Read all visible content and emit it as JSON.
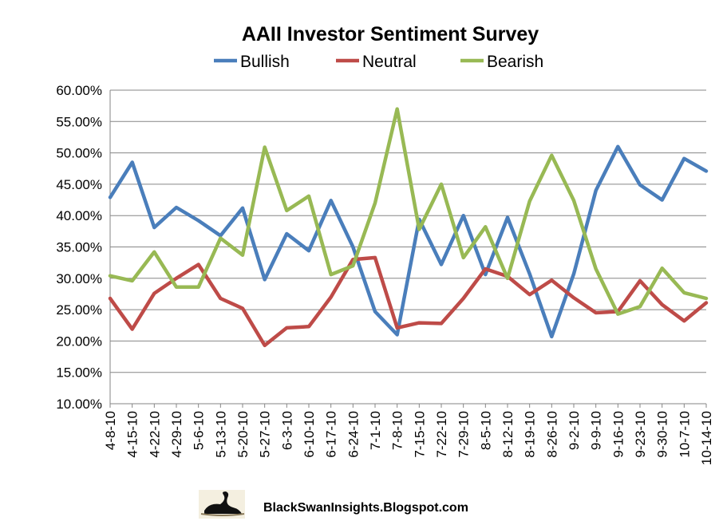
{
  "colors": {
    "bullish": "#4a7ebb",
    "neutral": "#be4b48",
    "bearish": "#98b954",
    "grid": "#868686"
  },
  "footer": {
    "text": "BlackSwanInsights.Blogspot.com",
    "logo_icon": "black-swan-logo-icon"
  },
  "chart_data": {
    "type": "line",
    "title": "AAII Investor Sentiment Survey",
    "xlabel": "",
    "ylabel": "",
    "ylim": [
      0.1,
      0.6
    ],
    "yticks": [
      "10.00%",
      "15.00%",
      "20.00%",
      "25.00%",
      "30.00%",
      "35.00%",
      "40.00%",
      "45.00%",
      "50.00%",
      "55.00%",
      "60.00%"
    ],
    "grid": "horizontal",
    "legend_position": "top",
    "categories": [
      "4-8-10",
      "4-15-10",
      "4-22-10",
      "4-29-10",
      "5-6-10",
      "5-13-10",
      "5-20-10",
      "5-27-10",
      "6-3-10",
      "6-10-10",
      "6-17-10",
      "6-24-10",
      "7-1-10",
      "7-8-10",
      "7-15-10",
      "7-22-10",
      "7-29-10",
      "8-5-10",
      "8-12-10",
      "8-19-10",
      "8-26-10",
      "9-2-10",
      "9-9-10",
      "9-16-10",
      "9-23-10",
      "9-30-10",
      "10-7-10",
      "10-14-10"
    ],
    "series": [
      {
        "name": "Bullish",
        "color_key": "bullish",
        "values": [
          0.429,
          0.485,
          0.381,
          0.413,
          0.392,
          0.368,
          0.412,
          0.298,
          0.371,
          0.344,
          0.424,
          0.35,
          0.247,
          0.21,
          0.394,
          0.322,
          0.4,
          0.306,
          0.397,
          0.307,
          0.207,
          0.307,
          0.44,
          0.51,
          0.449,
          0.425,
          0.491,
          0.471
        ]
      },
      {
        "name": "Neutral",
        "color_key": "neutral",
        "values": [
          0.268,
          0.219,
          0.276,
          0.3,
          0.322,
          0.268,
          0.252,
          0.193,
          0.221,
          0.223,
          0.27,
          0.33,
          0.333,
          0.221,
          0.229,
          0.228,
          0.268,
          0.315,
          0.303,
          0.274,
          0.297,
          0.269,
          0.245,
          0.247,
          0.296,
          0.258,
          0.232,
          0.261
        ]
      },
      {
        "name": "Bearish",
        "color_key": "bearish",
        "values": [
          0.304,
          0.296,
          0.342,
          0.286,
          0.286,
          0.364,
          0.337,
          0.509,
          0.408,
          0.431,
          0.306,
          0.32,
          0.42,
          0.57,
          0.378,
          0.45,
          0.333,
          0.382,
          0.3,
          0.423,
          0.496,
          0.424,
          0.315,
          0.243,
          0.255,
          0.316,
          0.277,
          0.268
        ]
      }
    ]
  }
}
